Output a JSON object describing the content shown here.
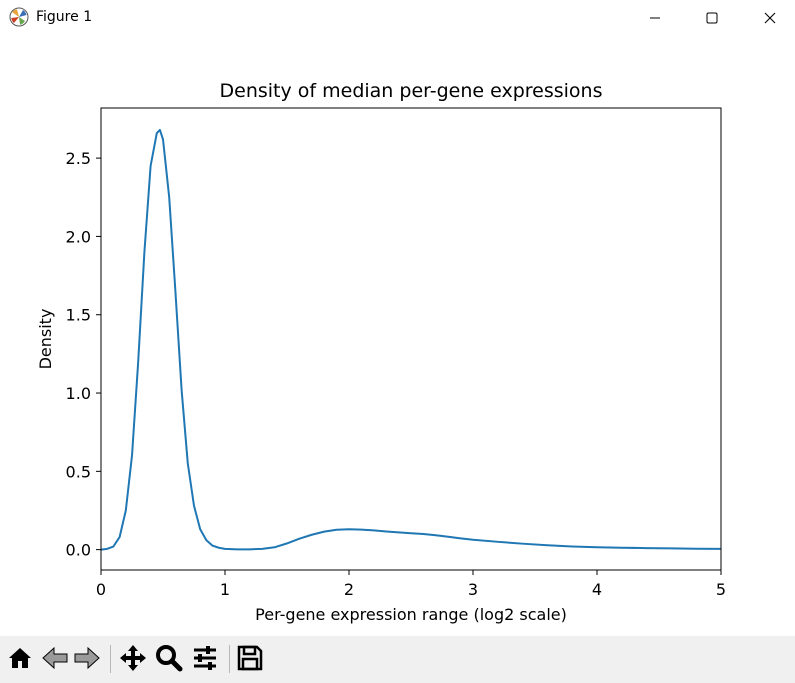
{
  "window": {
    "title": "Figure 1",
    "controls": {
      "minimize": "minimize-icon",
      "maximize": "maximize-icon",
      "close": "close-icon"
    }
  },
  "toolbar": {
    "items": [
      "home-icon",
      "back-icon",
      "forward-icon",
      "pan-icon",
      "zoom-icon",
      "configure-subplots-icon",
      "save-icon"
    ]
  },
  "chart_data": {
    "type": "line",
    "title": "Density of median per-gene expressions",
    "xlabel": "Per-gene expression range (log2 scale)",
    "ylabel": "Density",
    "xlim": [
      0,
      5
    ],
    "ylim": [
      -0.13,
      2.82
    ],
    "xticks": [
      "0",
      "1",
      "2",
      "3",
      "4",
      "5"
    ],
    "yticks": [
      "0.0",
      "0.5",
      "1.0",
      "1.5",
      "2.0",
      "2.5"
    ],
    "grid": false,
    "line_color": "#1f77b4",
    "series": [
      {
        "x": [
          0.0,
          0.05,
          0.1,
          0.15,
          0.2,
          0.25,
          0.3,
          0.35,
          0.4,
          0.45,
          0.475,
          0.5,
          0.55,
          0.6,
          0.65,
          0.7,
          0.75,
          0.8,
          0.85,
          0.9,
          0.95,
          1.0,
          1.1,
          1.2,
          1.3,
          1.4,
          1.5,
          1.6,
          1.7,
          1.8,
          1.9,
          2.0,
          2.1,
          2.2,
          2.3,
          2.4,
          2.5,
          2.6,
          2.7,
          2.8,
          2.9,
          3.0,
          3.2,
          3.4,
          3.6,
          3.8,
          4.0,
          4.2,
          4.4,
          4.6,
          4.8,
          5.0
        ],
        "y": [
          0.0,
          0.005,
          0.02,
          0.08,
          0.25,
          0.6,
          1.2,
          1.9,
          2.45,
          2.66,
          2.68,
          2.62,
          2.25,
          1.65,
          1.02,
          0.55,
          0.28,
          0.13,
          0.06,
          0.025,
          0.012,
          0.005,
          0.002,
          0.002,
          0.005,
          0.015,
          0.04,
          0.07,
          0.095,
          0.115,
          0.127,
          0.13,
          0.128,
          0.123,
          0.116,
          0.11,
          0.105,
          0.1,
          0.092,
          0.082,
          0.072,
          0.063,
          0.05,
          0.038,
          0.028,
          0.02,
          0.015,
          0.012,
          0.01,
          0.008,
          0.006,
          0.005
        ]
      }
    ]
  }
}
